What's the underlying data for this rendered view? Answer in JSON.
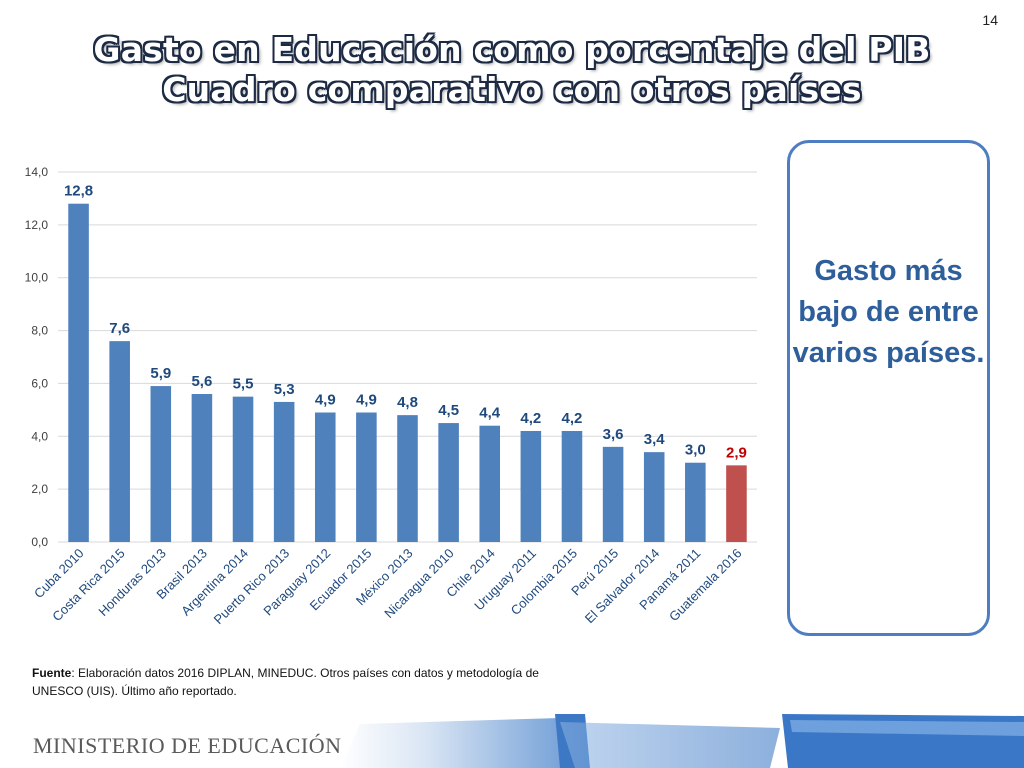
{
  "page_number": "14",
  "title_line1": "Gasto en Educación como porcentaje del PIB",
  "title_line2": "Cuadro comparativo con otros países",
  "callout": "Gasto más bajo de entre varios países.",
  "footnote": {
    "label": "Fuente",
    "text": ": Elaboración datos 2016 DIPLAN, MINEDUC. Otros países con datos y metodología de UNESCO (UIS). Último año reportado."
  },
  "ministry": "MINISTERIO DE EDUCACIÓN",
  "colors": {
    "bar": "#4f81bd",
    "highlight": "#c0504d",
    "label": "#1f497d",
    "highlight_label": "#c00000",
    "accent": "#2e75b6"
  },
  "chart_data": {
    "type": "bar",
    "categories": [
      "Cuba  2010",
      "Costa Rica  2015",
      "Honduras  2013",
      "Brasil  2013",
      "Argentina  2014",
      "Puerto Rico  2013",
      "Paraguay  2012",
      "Ecuador  2015",
      "México  2013",
      "Nicaragua  2010",
      "Chile  2014",
      "Uruguay  2011",
      "Colombia  2015",
      "Perú  2015",
      "El Salvador  2014",
      "Panamá  2011",
      "Guatemala  2016"
    ],
    "values": [
      12.8,
      7.6,
      5.9,
      5.6,
      5.5,
      5.3,
      4.9,
      4.9,
      4.8,
      4.5,
      4.4,
      4.2,
      4.2,
      3.6,
      3.4,
      3.0,
      2.9
    ],
    "value_labels": [
      "12,8",
      "7,6",
      "5,9",
      "5,6",
      "5,5",
      "5,3",
      "4,9",
      "4,9",
      "4,8",
      "4,5",
      "4,4",
      "4,2",
      "4,2",
      "3,6",
      "3,4",
      "3,0",
      "2,9"
    ],
    "highlight_index": 16,
    "yticks": [
      "0,0",
      "2,0",
      "4,0",
      "6,0",
      "8,0",
      "10,0",
      "12,0",
      "14,0"
    ],
    "ylim": [
      0,
      14
    ],
    "grid": true
  }
}
